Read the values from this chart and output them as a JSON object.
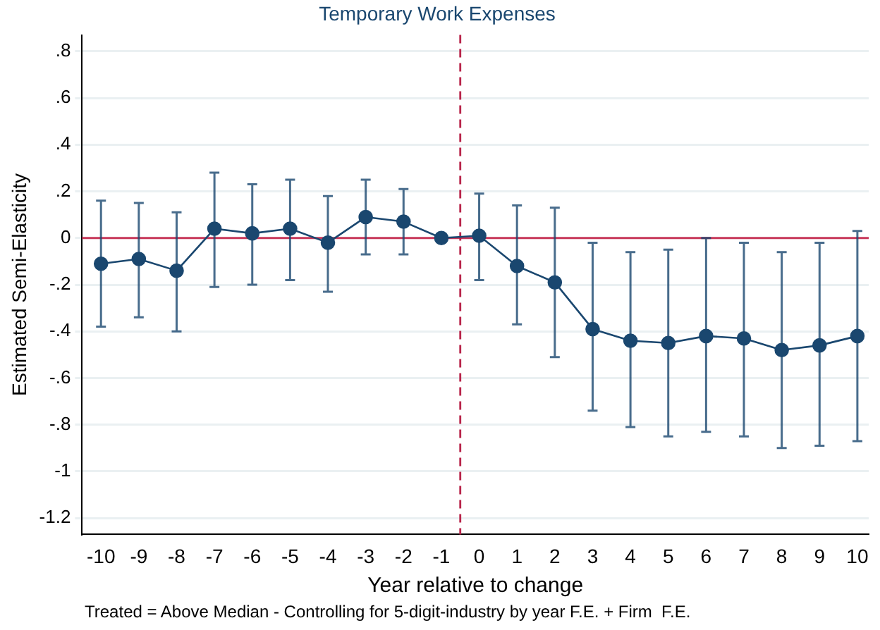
{
  "chart_data": {
    "type": "line",
    "title": "Temporary Work Expenses",
    "xlabel": "Year relative to change",
    "ylabel": "Estimated Semi-Elasticity",
    "annotations": [
      "Treated = Above Median - Controlling for 5-digit-industry by year F.E. + Firm  F.E."
    ],
    "x": [
      -10,
      -9,
      -8,
      -7,
      -6,
      -5,
      -4,
      -3,
      -2,
      -1,
      0,
      1,
      2,
      3,
      4,
      5,
      6,
      7,
      8,
      9,
      10
    ],
    "series": [
      {
        "color": "#1a476f",
        "values": [
          -0.11,
          -0.09,
          -0.14,
          0.04,
          0.02,
          0.04,
          -0.02,
          0.09,
          0.07,
          0,
          0.01,
          -0.12,
          -0.19,
          -0.39,
          -0.44,
          -0.45,
          -0.42,
          -0.43,
          -0.48,
          -0.46,
          -0.42
        ],
        "errors": [
          [
            -0.38,
            0.16
          ],
          [
            -0.34,
            0.15
          ],
          [
            -0.4,
            0.11
          ],
          [
            -0.21,
            0.28
          ],
          [
            -0.2,
            0.23
          ],
          [
            -0.18,
            0.25
          ],
          [
            -0.23,
            0.18
          ],
          [
            -0.07,
            0.25
          ],
          [
            -0.07,
            0.21
          ],
          null,
          [
            -0.18,
            0.19
          ],
          [
            -0.37,
            0.14
          ],
          [
            -0.51,
            0.13
          ],
          [
            -0.74,
            -0.02
          ],
          [
            -0.81,
            -0.06
          ],
          [
            -0.85,
            -0.05
          ],
          [
            -0.83,
            0
          ],
          [
            -0.85,
            -0.02
          ],
          [
            -0.9,
            -0.06
          ],
          [
            -0.89,
            -0.02
          ],
          [
            -0.87,
            0.03
          ]
        ]
      }
    ],
    "xlim": [
      -10.5,
      10.3
    ],
    "xticks": [
      -10,
      -9,
      -8,
      -7,
      -6,
      -5,
      -4,
      -3,
      -2,
      -1,
      0,
      1,
      2,
      3,
      4,
      5,
      6,
      7,
      8,
      9,
      10
    ],
    "ylim": [
      -1.27,
      0.87
    ],
    "yticks": [
      {
        "value": -1.2,
        "label": "-1.2"
      },
      {
        "value": -1,
        "label": "-1"
      },
      {
        "value": -0.8,
        "label": "-.8"
      },
      {
        "value": -0.6,
        "label": "-.6"
      },
      {
        "value": -0.4,
        "label": "-.4"
      },
      {
        "value": -0.2,
        "label": "-.2"
      },
      {
        "value": 0,
        "label": "0"
      },
      {
        "value": 0.2,
        "label": ".2"
      },
      {
        "value": 0.4,
        "label": ".4"
      },
      {
        "value": 0.6,
        "label": ".6"
      },
      {
        "value": 0.8,
        "label": ".8"
      }
    ],
    "ref_lines": [
      {
        "axis": "y",
        "value": 0,
        "color": "#c8385a",
        "line_style": "solid"
      },
      {
        "axis": "x",
        "value": -0.5,
        "color": "#b8244a",
        "line_style": "dashed"
      }
    ],
    "grid": "y",
    "legend": false,
    "marker": "circle",
    "line_style": "solid"
  }
}
